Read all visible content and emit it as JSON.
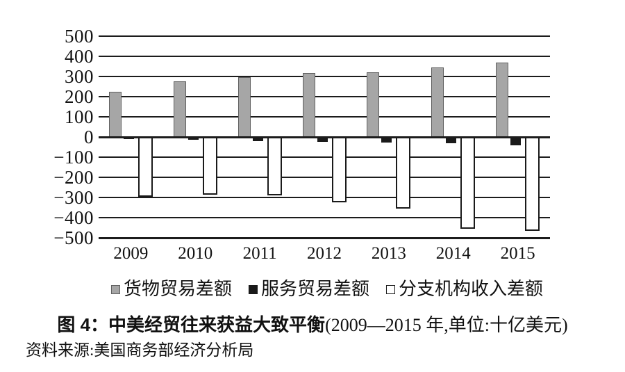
{
  "chart_data": {
    "type": "bar",
    "title_bold": "图 4：中美经贸往来获益大致平衡",
    "title_paren": "(2009—2015 年,单位:十亿美元)",
    "source": "资料来源:美国商务部经济分析局",
    "categories": [
      "2009",
      "2010",
      "2011",
      "2012",
      "2013",
      "2014",
      "2015"
    ],
    "series": [
      {
        "name": "货物贸易差额",
        "color": "#a6a6a6",
        "border_color": "#5f5f5f",
        "values": [
          225,
          275,
          295,
          318,
          320,
          345,
          370
        ]
      },
      {
        "name": "服务贸易差额",
        "color": "#1a1a1a",
        "border_color": "#1a1a1a",
        "values": [
          -10,
          -15,
          -20,
          -23,
          -28,
          -32,
          -40
        ]
      },
      {
        "name": "分支机构收入差额",
        "color": "#ffffff",
        "border_color": "#1a1a1a",
        "values": [
          -295,
          -285,
          -290,
          -325,
          -355,
          -455,
          -465
        ]
      }
    ],
    "ylim": [
      -500,
      500
    ],
    "ytick_step": 100,
    "yticks": [
      "500",
      "400",
      "300",
      "200",
      "100",
      "0",
      "−100",
      "−200",
      "−300",
      "−400",
      "−500"
    ],
    "grid": true,
    "legend_position": "bottom",
    "colors": {
      "gridline": "#1c1c1c",
      "text": "#111111",
      "background": "#ffffff"
    }
  }
}
